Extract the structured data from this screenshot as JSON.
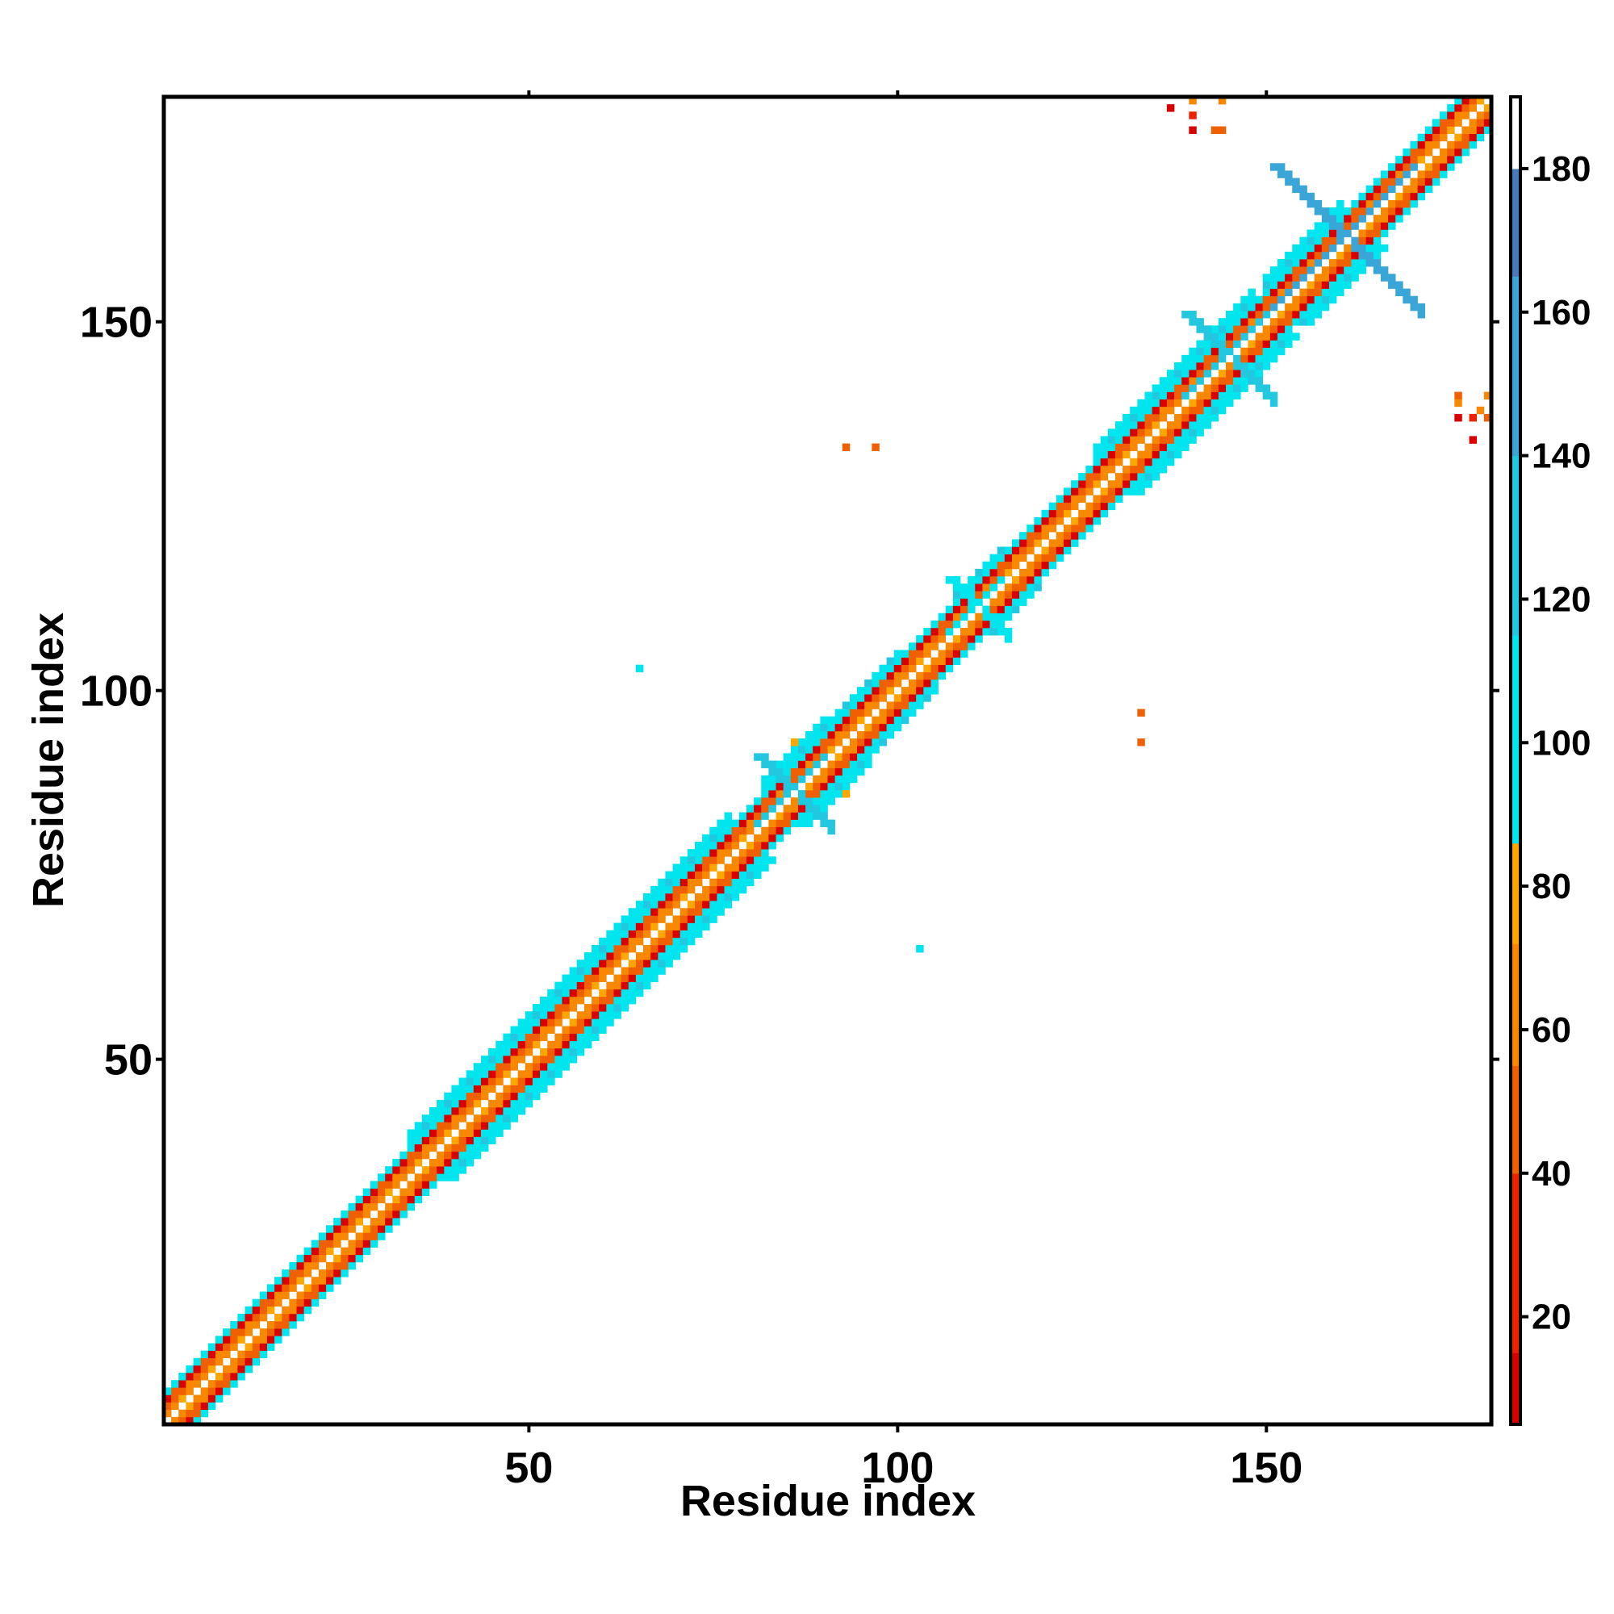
{
  "chart_data": {
    "type": "heatmap",
    "title": "",
    "xlabel": "Residue index",
    "ylabel": "Residue index",
    "xlim": [
      1,
      180
    ],
    "ylim": [
      1,
      180
    ],
    "x_ticks": [
      50,
      100,
      150
    ],
    "y_ticks": [
      50,
      100,
      150
    ],
    "x_tick_labels": [
      "50",
      "100",
      "150"
    ],
    "y_tick_labels": [
      "50",
      "100",
      "150"
    ],
    "colorbar": {
      "range": [
        5,
        190
      ],
      "ticks": [
        20,
        40,
        60,
        80,
        100,
        120,
        140,
        160,
        180
      ],
      "tick_labels": [
        "20",
        "40",
        "60",
        "80",
        "100",
        "120",
        "140",
        "160",
        "180"
      ],
      "bands": [
        {
          "from": 5,
          "to": 15,
          "color": "#d90000"
        },
        {
          "from": 15,
          "to": 40,
          "color": "#ee2200"
        },
        {
          "from": 40,
          "to": 55,
          "color": "#f06000"
        },
        {
          "from": 55,
          "to": 72,
          "color": "#f88800"
        },
        {
          "from": 72,
          "to": 86,
          "color": "#ffa500"
        },
        {
          "from": 86,
          "to": 115,
          "color": "#00e5ee"
        },
        {
          "from": 115,
          "to": 140,
          "color": "#22c7e0"
        },
        {
          "from": 140,
          "to": 165,
          "color": "#3aa6d8"
        },
        {
          "from": 165,
          "to": 180,
          "color": "#4a78b8"
        },
        {
          "from": 180,
          "to": 190,
          "color": "#ffffff"
        }
      ]
    },
    "diagonal_band": {
      "offset_profile": [
        {
          "d": 1,
          "value": 60
        },
        {
          "d": 2,
          "value": 40
        },
        {
          "d": 3,
          "value": 10
        },
        {
          "d": 4,
          "value": 100
        }
      ],
      "wider_segments": [
        {
          "from": 34,
          "to": 77,
          "max_offset": 6
        },
        {
          "from": 82,
          "to": 90,
          "max_offset": 6
        },
        {
          "from": 89,
          "to": 100,
          "max_offset": 5
        },
        {
          "from": 108,
          "to": 114,
          "max_offset": 5
        },
        {
          "from": 127,
          "to": 148,
          "max_offset": 6
        },
        {
          "from": 150,
          "to": 160,
          "max_offset": 6
        }
      ],
      "cross_patterns": [
        {
          "center": 86,
          "length": 5,
          "value": 130
        },
        {
          "center": 111,
          "length": 4,
          "value": 110
        },
        {
          "center": 161,
          "length": 10,
          "value": 150
        },
        {
          "center": 145,
          "length": 6,
          "value": 130
        }
      ]
    },
    "off_diagonal_points": [
      {
        "x": 137,
        "y": 179,
        "value": 10
      },
      {
        "x": 140,
        "y": 180,
        "value": 55
      },
      {
        "x": 140,
        "y": 178,
        "value": 20
      },
      {
        "x": 144,
        "y": 180,
        "value": 65
      },
      {
        "x": 140,
        "y": 176,
        "value": 10
      },
      {
        "x": 143,
        "y": 176,
        "value": 50
      },
      {
        "x": 144,
        "y": 176,
        "value": 50
      },
      {
        "x": 176,
        "y": 140,
        "value": 50
      },
      {
        "x": 176,
        "y": 139,
        "value": 60
      },
      {
        "x": 180,
        "y": 140,
        "value": 65
      },
      {
        "x": 176,
        "y": 137,
        "value": 10
      },
      {
        "x": 178,
        "y": 137,
        "value": 20
      },
      {
        "x": 179,
        "y": 138,
        "value": 60
      },
      {
        "x": 180,
        "y": 137,
        "value": 50
      },
      {
        "x": 178,
        "y": 134,
        "value": 10
      },
      {
        "x": 93,
        "y": 133,
        "value": 50
      },
      {
        "x": 97,
        "y": 133,
        "value": 50
      },
      {
        "x": 133,
        "y": 97,
        "value": 50
      },
      {
        "x": 133,
        "y": 93,
        "value": 50
      },
      {
        "x": 65,
        "y": 103,
        "value": 100
      },
      {
        "x": 103,
        "y": 65,
        "value": 100
      },
      {
        "x": 93,
        "y": 86,
        "value": 75
      },
      {
        "x": 86,
        "y": 93,
        "value": 75
      }
    ]
  }
}
